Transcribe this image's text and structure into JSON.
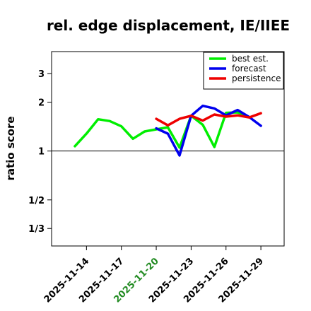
{
  "chart_data": {
    "type": "line",
    "title": "rel. edge displacement, IE/IIEE",
    "ylabel": "ratio score",
    "y_scale": "log",
    "ylim": [
      0.26,
      4.1
    ],
    "xlim": [
      "2025-11-11",
      "2025-12-01"
    ],
    "y_ticks": [
      {
        "value": 3,
        "label": "3"
      },
      {
        "value": 2,
        "label": "2"
      },
      {
        "value": 1,
        "label": "1"
      },
      {
        "value": 0.5,
        "label": "1/2"
      },
      {
        "value": 0.3333,
        "label": "1/3"
      }
    ],
    "x_ticks": [
      {
        "date": "2025-11-14",
        "label": "2025-11-14",
        "color": "#000000"
      },
      {
        "date": "2025-11-17",
        "label": "2025-11-17",
        "color": "#000000"
      },
      {
        "date": "2025-11-20",
        "label": "2025-11-20",
        "color": "#228B22"
      },
      {
        "date": "2025-11-23",
        "label": "2025-11-23",
        "color": "#000000"
      },
      {
        "date": "2025-11-26",
        "label": "2025-11-26",
        "color": "#000000"
      },
      {
        "date": "2025-11-29",
        "label": "2025-11-29",
        "color": "#000000"
      }
    ],
    "reference_line": 1,
    "legend_position": "top-right",
    "series": [
      {
        "name": "best est.",
        "color": "#00ee00",
        "points": [
          [
            "2025-11-13",
            1.07
          ],
          [
            "2025-11-14",
            1.28
          ],
          [
            "2025-11-15",
            1.57
          ],
          [
            "2025-11-16",
            1.53
          ],
          [
            "2025-11-17",
            1.42
          ],
          [
            "2025-11-18",
            1.19
          ],
          [
            "2025-11-19",
            1.32
          ],
          [
            "2025-11-20",
            1.36
          ],
          [
            "2025-11-21",
            1.4
          ],
          [
            "2025-11-22",
            1.05
          ],
          [
            "2025-11-23",
            1.65
          ],
          [
            "2025-11-24",
            1.45
          ],
          [
            "2025-11-25",
            1.06
          ],
          [
            "2025-11-26",
            1.72
          ],
          [
            "2025-11-27",
            1.73
          ],
          [
            "2025-11-28",
            1.62
          ]
        ]
      },
      {
        "name": "forecast",
        "color": "#0000ee",
        "points": [
          [
            "2025-11-20",
            1.38
          ],
          [
            "2025-11-21",
            1.28
          ],
          [
            "2025-11-22",
            0.94
          ],
          [
            "2025-11-23",
            1.65
          ],
          [
            "2025-11-24",
            1.9
          ],
          [
            "2025-11-25",
            1.83
          ],
          [
            "2025-11-26",
            1.66
          ],
          [
            "2025-11-27",
            1.79
          ],
          [
            "2025-11-28",
            1.62
          ],
          [
            "2025-11-29",
            1.43
          ]
        ]
      },
      {
        "name": "persistence",
        "color": "#ee0000",
        "points": [
          [
            "2025-11-20",
            1.58
          ],
          [
            "2025-11-21",
            1.44
          ],
          [
            "2025-11-22",
            1.58
          ],
          [
            "2025-11-23",
            1.65
          ],
          [
            "2025-11-24",
            1.54
          ],
          [
            "2025-11-25",
            1.68
          ],
          [
            "2025-11-26",
            1.63
          ],
          [
            "2025-11-27",
            1.66
          ],
          [
            "2025-11-28",
            1.61
          ],
          [
            "2025-11-29",
            1.71
          ]
        ]
      }
    ]
  }
}
